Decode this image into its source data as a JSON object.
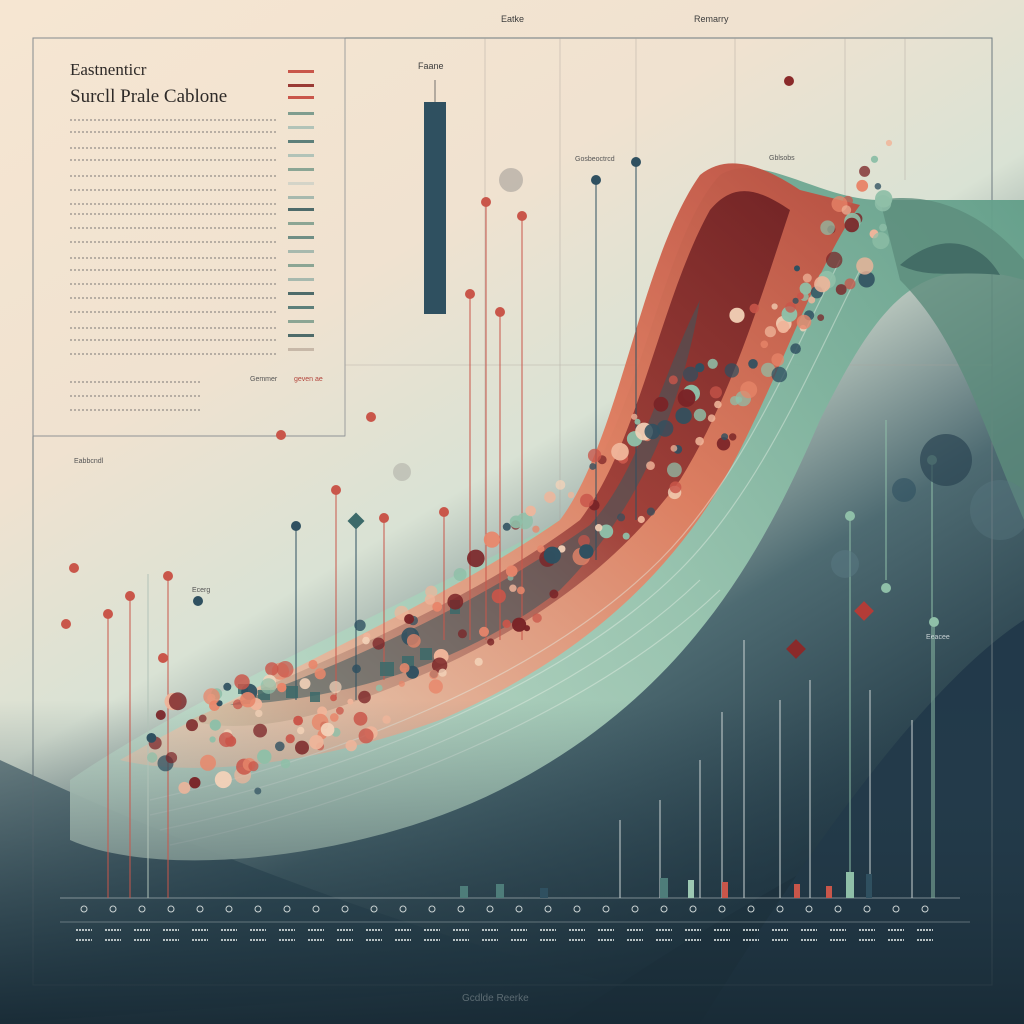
{
  "header": {
    "top_label_left": "Eatke",
    "top_label_right": "Remarry"
  },
  "panel": {
    "title_line1": "Eastnenticr",
    "title_line2": "Surcll Prale Cablone",
    "sub_label": "Eabbcndl"
  },
  "labels": {
    "bar_label": "Faane",
    "chart_label_a": "Gosbeoctrcd",
    "chart_label_b": "Gblsobs",
    "small_label_1": "Ecerg",
    "right_label": "Eeacee",
    "legend_label_1": "Gemmer",
    "legend_label_2": "geven ae"
  },
  "footer": {
    "caption": "Gcdlde Reerke"
  },
  "colors": {
    "cream": "#f3e3cf",
    "coral": "#c9564a",
    "dark_red": "#7a2427",
    "sage": "#8fbfa8",
    "teal_dark": "#2f5060",
    "navy": "#1f3440",
    "peach": "#f0b59a"
  }
}
